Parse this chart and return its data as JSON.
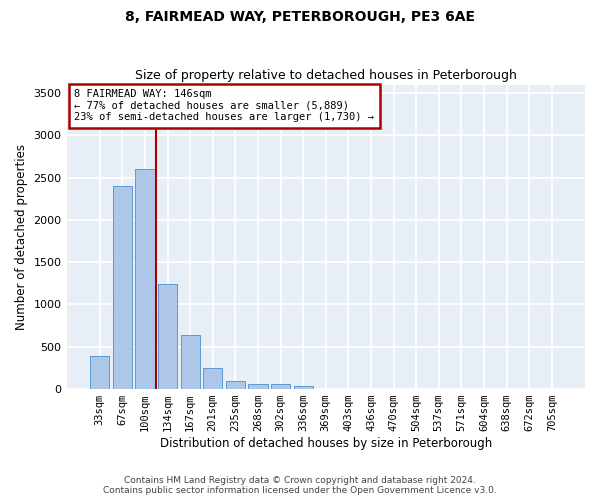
{
  "title": "8, FAIRMEAD WAY, PETERBOROUGH, PE3 6AE",
  "subtitle": "Size of property relative to detached houses in Peterborough",
  "xlabel": "Distribution of detached houses by size in Peterborough",
  "ylabel": "Number of detached properties",
  "categories": [
    "33sqm",
    "67sqm",
    "100sqm",
    "134sqm",
    "167sqm",
    "201sqm",
    "235sqm",
    "268sqm",
    "302sqm",
    "336sqm",
    "369sqm",
    "403sqm",
    "436sqm",
    "470sqm",
    "504sqm",
    "537sqm",
    "571sqm",
    "604sqm",
    "638sqm",
    "672sqm",
    "705sqm"
  ],
  "values": [
    390,
    2400,
    2600,
    1240,
    640,
    255,
    95,
    60,
    55,
    40,
    0,
    0,
    0,
    0,
    0,
    0,
    0,
    0,
    0,
    0,
    0
  ],
  "bar_color": "#aec6e8",
  "bar_edge_color": "#5b9bd5",
  "vline_x": 2.5,
  "vline_color": "#aa0000",
  "annotation_text": "8 FAIRMEAD WAY: 146sqm\n← 77% of detached houses are smaller (5,889)\n23% of semi-detached houses are larger (1,730) →",
  "annotation_box_color": "#ffffff",
  "annotation_box_edge": "#aa0000",
  "ylim": [
    0,
    3600
  ],
  "yticks": [
    0,
    500,
    1000,
    1500,
    2000,
    2500,
    3000,
    3500
  ],
  "bg_color": "#e8eef6",
  "grid_color": "#ffffff",
  "footer_line1": "Contains HM Land Registry data © Crown copyright and database right 2024.",
  "footer_line2": "Contains public sector information licensed under the Open Government Licence v3.0.",
  "title_fontsize": 10,
  "subtitle_fontsize": 9,
  "xlabel_fontsize": 8.5,
  "ylabel_fontsize": 8.5
}
